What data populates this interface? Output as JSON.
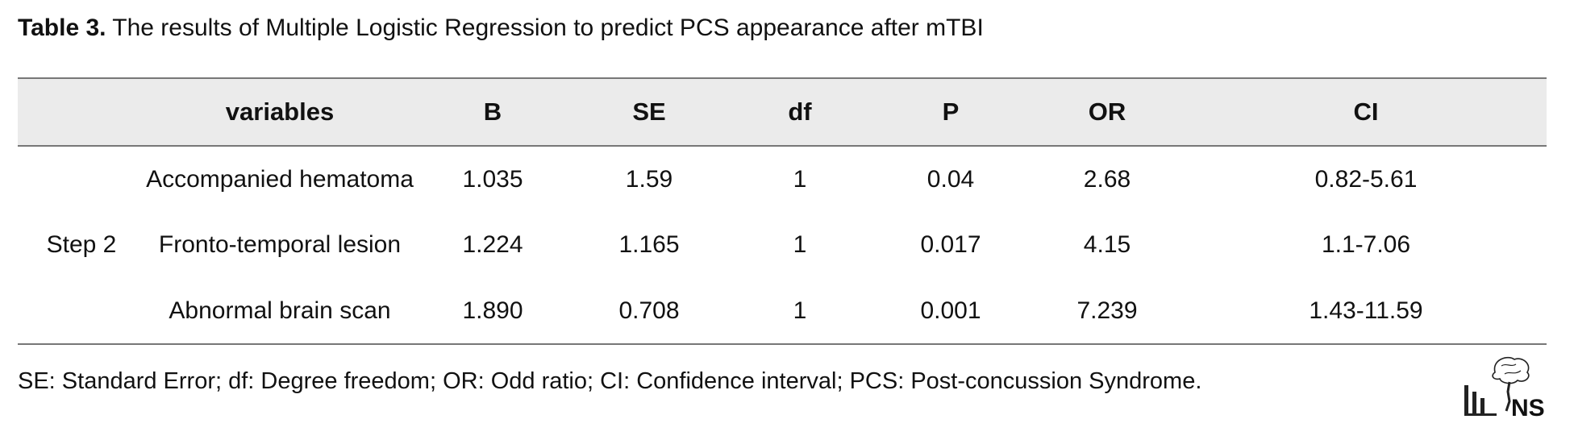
{
  "caption": {
    "label": "Table 3.",
    "text": "The results of Multiple Logistic Regression to predict PCS appearance after mTBI"
  },
  "table": {
    "headers": [
      "",
      "variables",
      "B",
      "SE",
      "df",
      "P",
      "OR",
      "CI"
    ],
    "step_label": "Step 2",
    "rows": [
      {
        "variable": "Accompanied hematoma",
        "B": "1.035",
        "SE": "1.59",
        "df": "1",
        "P": "0.04",
        "OR": "2.68",
        "CI": "0.82-5.61"
      },
      {
        "variable": "Fronto-temporal lesion",
        "B": "1.224",
        "SE": "1.165",
        "df": "1",
        "P": "0.017",
        "OR": "4.15",
        "CI": "1.1-7.06"
      },
      {
        "variable": "Abnormal brain scan",
        "B": "1.890",
        "SE": "0.708",
        "df": "1",
        "P": "0.001",
        "OR": "7.239",
        "CI": "1.43-11.59"
      }
    ]
  },
  "footnote": "SE: Standard Error; df: Degree freedom; OR: Odd ratio; CI: Confidence interval; PCS: Post-concussion Syndrome.",
  "logo": {
    "icon": "journal-logo-icon",
    "text": "NS"
  }
}
